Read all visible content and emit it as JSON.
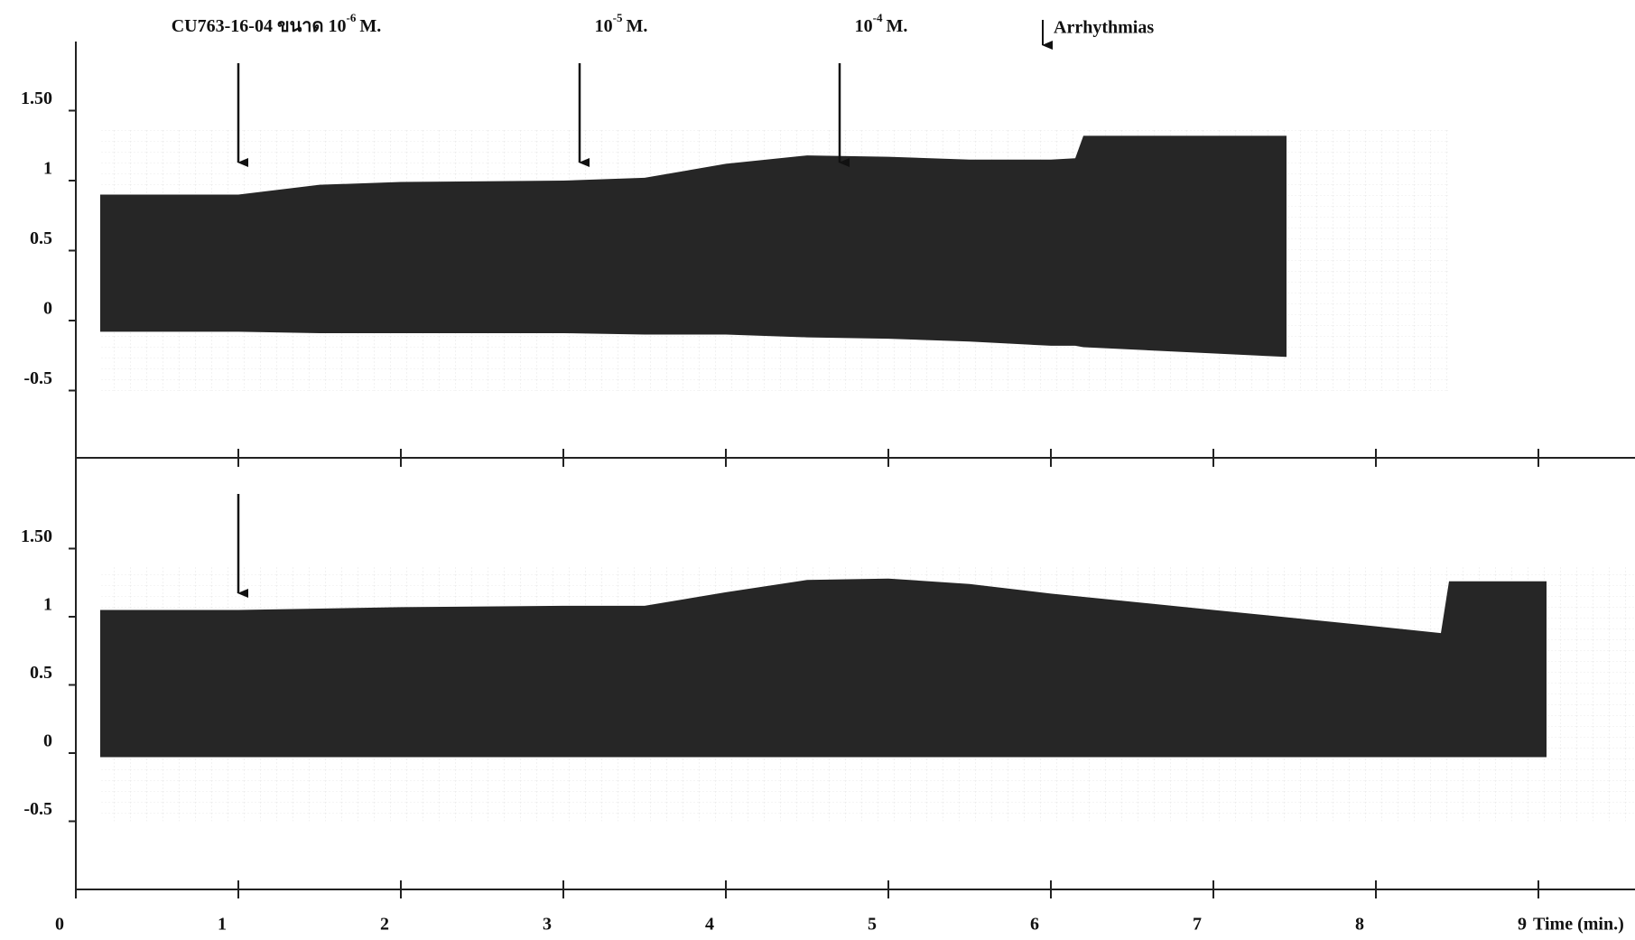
{
  "chart_data": [
    {
      "type": "envelope",
      "xlim": [
        0,
        9.5
      ],
      "ylim": [
        -1,
        2
      ],
      "yticks": [
        {
          "value": 1.5,
          "label": "1.50"
        },
        1,
        0.5,
        0,
        -0.5
      ],
      "color": "#262626",
      "x": [
        0.15,
        1,
        1.5,
        2,
        3,
        3.5,
        4,
        4.5,
        5,
        5.5,
        6,
        6.15,
        6.2,
        7.45
      ],
      "upper": [
        0.9,
        0.9,
        0.97,
        0.99,
        1.0,
        1.02,
        1.12,
        1.18,
        1.17,
        1.15,
        1.15,
        1.16,
        1.32,
        1.32
      ],
      "lower": [
        -0.08,
        -0.08,
        -0.09,
        -0.09,
        -0.09,
        -0.1,
        -0.1,
        -0.12,
        -0.13,
        -0.15,
        -0.18,
        -0.18,
        -0.19,
        -0.26
      ],
      "events": [
        {
          "x": 1.0,
          "text": "CU763-16-04 ขนาด 10",
          "sup": "-6",
          "unit": "M."
        },
        {
          "x": 3.1,
          "text": "10",
          "sup": "-5",
          "unit": "M."
        },
        {
          "x": 4.7,
          "text": "10",
          "sup": "-4",
          "unit": "M."
        },
        {
          "x": 5.95,
          "text": "Arrhythmias"
        }
      ]
    },
    {
      "type": "envelope",
      "xlim": [
        0,
        9.5
      ],
      "ylim": [
        -1,
        2
      ],
      "yticks": [
        {
          "value": 1.5,
          "label": "1.50"
        },
        1,
        0.5,
        0,
        -0.5
      ],
      "xticks": [
        0,
        1,
        2,
        3,
        4,
        5,
        6,
        7,
        8,
        9
      ],
      "x_label": "Time (min.)",
      "color": "#262626",
      "x": [
        0.15,
        1,
        1.5,
        2,
        3,
        3.5,
        4,
        4.5,
        5,
        5.5,
        6,
        7,
        8,
        8.4,
        8.45,
        9.05
      ],
      "upper": [
        1.05,
        1.05,
        1.06,
        1.07,
        1.08,
        1.08,
        1.18,
        1.27,
        1.28,
        1.24,
        1.17,
        1.05,
        0.93,
        0.88,
        1.26,
        1.26
      ],
      "lower": [
        -0.03,
        -0.03,
        -0.03,
        -0.03,
        -0.03,
        -0.03,
        -0.03,
        -0.03,
        -0.03,
        -0.03,
        -0.03,
        -0.03,
        -0.03,
        -0.03,
        -0.03,
        -0.03
      ],
      "events": [
        {
          "x": 1.0
        }
      ]
    }
  ]
}
